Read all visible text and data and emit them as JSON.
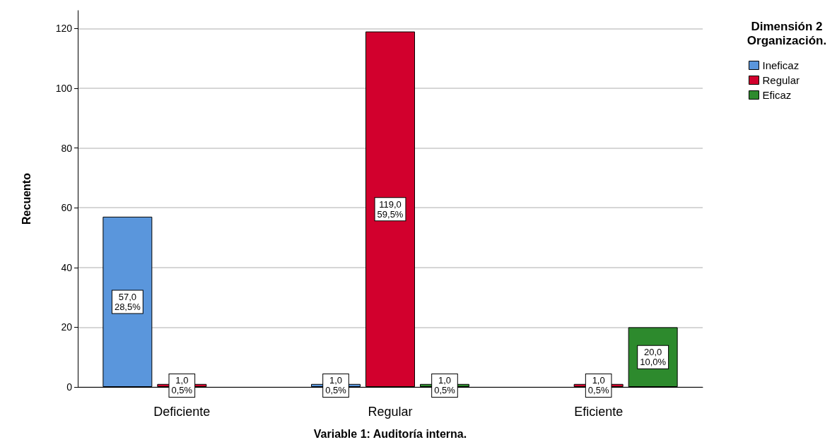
{
  "chart_data": {
    "type": "bar",
    "xlabel": "Variable 1: Auditoría interna.",
    "ylabel": "Recuento",
    "legend_title": "Dimensión 2\nOrganización.",
    "categories": [
      "Deficiente",
      "Regular",
      "Eficiente"
    ],
    "series": [
      {
        "name": "Ineficaz",
        "color": "#5a96dc",
        "values": [
          57,
          1,
          null
        ],
        "value_labels": [
          "57,0\n28,5%",
          "1,0\n0,5%",
          null
        ]
      },
      {
        "name": "Regular",
        "color": "#d2002d",
        "values": [
          1,
          119,
          1
        ],
        "value_labels": [
          "1,0\n0,5%",
          "119,0\n59,5%",
          "1,0\n0,5%"
        ]
      },
      {
        "name": "Eficaz",
        "color": "#2d8a2d",
        "values": [
          null,
          1,
          20
        ],
        "value_labels": [
          null,
          "1,0\n0,5%",
          "20,0\n10,0%"
        ]
      }
    ],
    "ylim": [
      0,
      126
    ],
    "yticks": [
      0,
      20,
      40,
      60,
      80,
      100,
      120
    ],
    "grid": "y",
    "legend": "top right"
  }
}
